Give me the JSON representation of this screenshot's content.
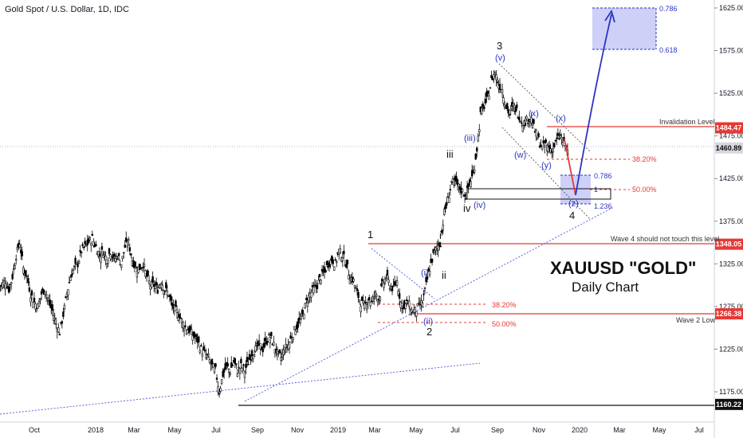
{
  "header": {
    "title": "Gold Spot / U.S. Dollar, 1D, IDC"
  },
  "overlay": {
    "title": "XAUUSD \"GOLD\"",
    "subtitle": "Daily Chart"
  },
  "colors": {
    "up": "#000000",
    "down": "#000000",
    "accent_blue": "#2b35c2",
    "accent_red": "#e53935",
    "box_blue": "#c5c8f7"
  },
  "chart_data": {
    "type": "candlestick",
    "title": "Gold Spot / U.S. Dollar, 1D, IDC",
    "ylim": [
      1150,
      1640
    ],
    "y_ticks": [
      "1625.00",
      "1575.00",
      "1525.00",
      "1475.00",
      "1425.00",
      "1375.00",
      "1325.00",
      "1275.00",
      "1225.00",
      "1175.00"
    ],
    "x_ticks": [
      "Oct",
      "2018",
      "Mar",
      "May",
      "Jul",
      "Sep",
      "Nov",
      "2019",
      "Mar",
      "May",
      "Jul",
      "Sep",
      "Nov",
      "2020",
      "Mar",
      "May",
      "Jul"
    ],
    "price_tags": [
      {
        "label": "1484.47",
        "value": 1484.47,
        "color": "red"
      },
      {
        "label": "1460.89",
        "value": 1460.89,
        "color": "grey"
      },
      {
        "label": "1348.05",
        "value": 1348.05,
        "color": "red"
      },
      {
        "label": "1266.38",
        "value": 1266.38,
        "color": "red"
      },
      {
        "label": "1160.22",
        "value": 1160.22,
        "color": "black"
      }
    ],
    "levels": [
      {
        "label": "Invalidation Level",
        "value": 1484.47
      },
      {
        "label": "Wave 4 should not touch this level",
        "value": 1348.05
      },
      {
        "label": "Wave 2 Low",
        "value": 1266.38
      }
    ],
    "fib_labels": [
      {
        "label": "0.786",
        "value": 1625
      },
      {
        "label": "0.618",
        "value": 1575
      },
      {
        "label": "38.20%",
        "value": 1445
      },
      {
        "label": "50.00%",
        "value": 1411
      },
      {
        "label": "0.786",
        "value": 1430
      },
      {
        "label": "1",
        "value": 1411
      },
      {
        "label": "1.236",
        "value": 1393
      },
      {
        "label": "38.20%",
        "value": 1281
      },
      {
        "label": "50.00%",
        "value": 1253
      }
    ],
    "waves": [
      "1",
      "2",
      "3",
      "4",
      "(i)",
      "(ii)",
      "i",
      "ii",
      "iii",
      "iv",
      "(iii)",
      "(iv)",
      "(v)",
      "(w)",
      "(x)",
      "(y)",
      "(x)",
      "(z)"
    ],
    "series": [
      {
        "values": [
          1300,
          1305,
          1295,
          1310,
          1335,
          1350,
          1320,
          1310,
          1290,
          1280,
          1275,
          1290,
          1295,
          1280,
          1270,
          1255,
          1245,
          1265,
          1290,
          1310,
          1320,
          1325,
          1340,
          1345,
          1350,
          1355,
          1345,
          1335,
          1340,
          1330,
          1340,
          1330,
          1335,
          1325,
          1345,
          1350,
          1330,
          1320,
          1320,
          1325,
          1310,
          1300,
          1300,
          1295,
          1305,
          1295,
          1290,
          1275,
          1270,
          1265,
          1255,
          1250,
          1245,
          1240,
          1235,
          1225,
          1220,
          1215,
          1205,
          1200,
          1175,
          1195,
          1205,
          1200,
          1210,
          1200,
          1205,
          1200,
          1210,
          1220,
          1225,
          1230,
          1225,
          1235,
          1240,
          1230,
          1220,
          1215,
          1225,
          1230,
          1240,
          1250,
          1255,
          1265,
          1280,
          1290,
          1295,
          1300,
          1310,
          1315,
          1325,
          1330,
          1325,
          1340,
          1335,
          1325,
          1310,
          1305,
          1290,
          1280,
          1275,
          1285,
          1280,
          1290,
          1285,
          1300,
          1310,
          1300,
          1295,
          1305,
          1280,
          1275,
          1280,
          1270,
          1270,
          1275,
          1280,
          1300,
          1320,
          1335,
          1345,
          1350,
          1385,
          1400,
          1420,
          1420,
          1415,
          1410,
          1405,
          1420,
          1430,
          1460,
          1500,
          1510,
          1520,
          1540,
          1550,
          1535,
          1530,
          1510,
          1500,
          1510,
          1505,
          1495,
          1490,
          1495,
          1495,
          1480,
          1470,
          1460,
          1465,
          1460,
          1460,
          1470,
          1475,
          1465,
          1460
        ]
      }
    ]
  }
}
